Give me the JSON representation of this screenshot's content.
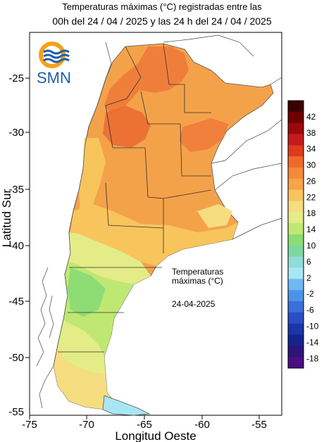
{
  "title_line1": "Temperaturas máximas (°C) registradas entre las",
  "title_line2": "00h del 24 / 04 / 2025 y las 24 h del 24 / 04 / 2025",
  "logo_text": "SMN",
  "axes": {
    "x_title": "Longitud Oeste",
    "y_title": "Latitud Sur",
    "x_ticks": [
      "-75",
      "-70",
      "-65",
      "-60",
      "-55"
    ],
    "y_ticks": [
      "-25",
      "-30",
      "-35",
      "-40",
      "-45",
      "-50",
      "-55"
    ]
  },
  "annotation": {
    "line1": "Temperaturas",
    "line2": "máximas (°C)",
    "date": "24-04-2025"
  },
  "legend": {
    "labels": [
      "42",
      "38",
      "34",
      "30",
      "26",
      "22",
      "18",
      "14",
      "10",
      "6",
      "2",
      "-2",
      "-6",
      "-10",
      "-14",
      "-18"
    ],
    "colors": [
      "#3b0000",
      "#6e0000",
      "#9b0a0a",
      "#c41c1c",
      "#e03a1e",
      "#ef6a2a",
      "#f48a3a",
      "#f6a54a",
      "#f8c45c",
      "#f5dd80",
      "#e3ec86",
      "#bfe873",
      "#8edc74",
      "#7dd8a0",
      "#8fdcd8",
      "#a8e6f5",
      "#6fb8f0",
      "#4a94e8",
      "#3a6fd8",
      "#2a4ec6",
      "#1c35a8",
      "#15238c",
      "#2c1478",
      "#4a0d82"
    ]
  }
}
